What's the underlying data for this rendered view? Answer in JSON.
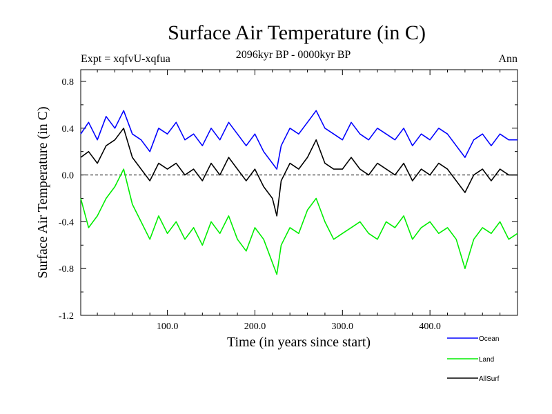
{
  "chart_data": {
    "type": "line",
    "title": "Surface Air Temperature (in C)",
    "subtitle_left": "Expt = xqfvU-xqfua",
    "subtitle_center": "2096kyr BP - 0000kyr BP",
    "subtitle_right": "Ann",
    "xlabel": "Time (in years since start)",
    "ylabel": "Surface Air Temperature (in C)",
    "xlim": [
      1,
      500
    ],
    "ylim": [
      -1.2,
      0.9
    ],
    "x_ticks": [
      100,
      200,
      300,
      400
    ],
    "x_tick_labels": [
      "100.0",
      "200.0",
      "300.0",
      "400.0"
    ],
    "y_ticks": [
      0.8,
      0.4,
      0.0,
      -0.4,
      -0.8,
      -1.2
    ],
    "y_tick_labels": [
      "0.8",
      "0.4",
      "0.0",
      "-0.4",
      "-0.8",
      "-1.2"
    ],
    "zero_line": true,
    "series": [
      {
        "name": "Ocean",
        "color": "#0000ff",
        "x": [
          1,
          10,
          20,
          30,
          40,
          50,
          60,
          70,
          80,
          90,
          100,
          110,
          120,
          130,
          140,
          150,
          160,
          170,
          180,
          190,
          200,
          210,
          220,
          225,
          230,
          240,
          250,
          260,
          270,
          280,
          290,
          300,
          310,
          320,
          330,
          340,
          350,
          360,
          370,
          380,
          390,
          400,
          410,
          420,
          430,
          440,
          450,
          460,
          470,
          480,
          490,
          500
        ],
        "values": [
          0.35,
          0.45,
          0.3,
          0.5,
          0.4,
          0.55,
          0.35,
          0.3,
          0.2,
          0.4,
          0.35,
          0.45,
          0.3,
          0.35,
          0.25,
          0.4,
          0.3,
          0.45,
          0.35,
          0.25,
          0.35,
          0.2,
          0.1,
          0.05,
          0.25,
          0.4,
          0.35,
          0.45,
          0.55,
          0.4,
          0.35,
          0.3,
          0.45,
          0.35,
          0.3,
          0.4,
          0.35,
          0.3,
          0.4,
          0.25,
          0.35,
          0.3,
          0.4,
          0.35,
          0.25,
          0.15,
          0.3,
          0.35,
          0.25,
          0.35,
          0.3,
          0.3
        ]
      },
      {
        "name": "Land",
        "color": "#00ee00",
        "x": [
          1,
          10,
          20,
          30,
          40,
          50,
          60,
          70,
          80,
          90,
          100,
          110,
          120,
          130,
          140,
          150,
          160,
          170,
          180,
          190,
          200,
          210,
          220,
          225,
          230,
          240,
          250,
          260,
          270,
          280,
          290,
          300,
          310,
          320,
          330,
          340,
          350,
          360,
          370,
          380,
          390,
          400,
          410,
          420,
          430,
          440,
          450,
          460,
          470,
          480,
          490,
          500
        ],
        "values": [
          -0.2,
          -0.45,
          -0.35,
          -0.2,
          -0.1,
          0.05,
          -0.25,
          -0.4,
          -0.55,
          -0.35,
          -0.5,
          -0.4,
          -0.55,
          -0.45,
          -0.6,
          -0.4,
          -0.5,
          -0.35,
          -0.55,
          -0.65,
          -0.45,
          -0.55,
          -0.75,
          -0.85,
          -0.6,
          -0.45,
          -0.5,
          -0.3,
          -0.2,
          -0.4,
          -0.55,
          -0.5,
          -0.45,
          -0.4,
          -0.5,
          -0.55,
          -0.4,
          -0.45,
          -0.35,
          -0.55,
          -0.45,
          -0.4,
          -0.5,
          -0.45,
          -0.55,
          -0.8,
          -0.55,
          -0.45,
          -0.5,
          -0.4,
          -0.55,
          -0.5
        ]
      },
      {
        "name": "AllSurf",
        "color": "#000000",
        "x": [
          1,
          10,
          20,
          30,
          40,
          50,
          60,
          70,
          80,
          90,
          100,
          110,
          120,
          130,
          140,
          150,
          160,
          170,
          180,
          190,
          200,
          210,
          220,
          225,
          230,
          240,
          250,
          260,
          270,
          280,
          290,
          300,
          310,
          320,
          330,
          340,
          350,
          360,
          370,
          380,
          390,
          400,
          410,
          420,
          430,
          440,
          450,
          460,
          470,
          480,
          490,
          500
        ],
        "values": [
          0.15,
          0.2,
          0.1,
          0.25,
          0.3,
          0.4,
          0.15,
          0.05,
          -0.05,
          0.1,
          0.05,
          0.1,
          0.0,
          0.05,
          -0.05,
          0.1,
          0.0,
          0.15,
          0.05,
          -0.05,
          0.05,
          -0.1,
          -0.2,
          -0.35,
          -0.05,
          0.1,
          0.05,
          0.15,
          0.3,
          0.1,
          0.05,
          0.05,
          0.15,
          0.05,
          0.0,
          0.1,
          0.05,
          0.0,
          0.1,
          -0.05,
          0.05,
          0.0,
          0.1,
          0.05,
          -0.05,
          -0.15,
          0.0,
          0.05,
          -0.05,
          0.05,
          0.0,
          0.0
        ]
      }
    ]
  }
}
